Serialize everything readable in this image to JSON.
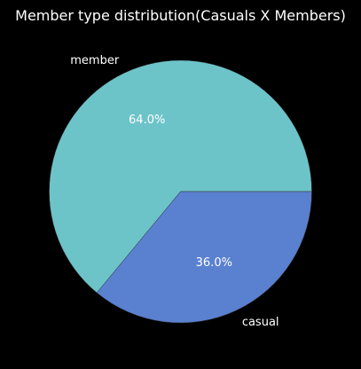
{
  "chart_data": {
    "type": "pie",
    "title": "Member type distribution(Casuals X Members)",
    "slices": [
      {
        "label": "member",
        "value": 64.0,
        "pct_label": "64.0%",
        "color": "#6cc4c9"
      },
      {
        "label": "casual",
        "value": 36.0,
        "pct_label": "36.0%",
        "color": "#5a80d0"
      }
    ],
    "background": "#000000",
    "edge_color": "#333333"
  }
}
